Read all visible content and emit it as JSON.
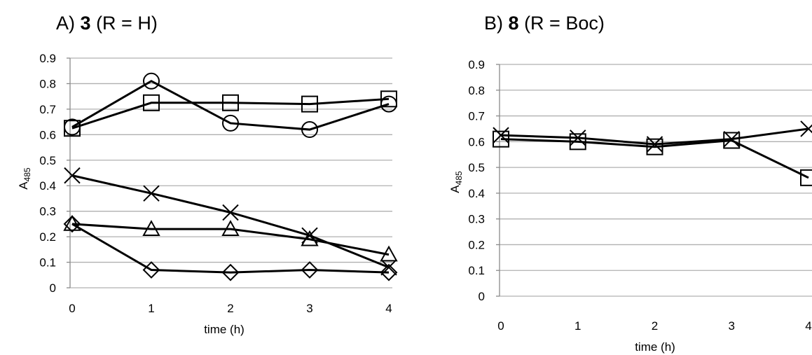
{
  "chart_data": [
    {
      "type": "line",
      "title_prefix": "A)",
      "title_compound": "3",
      "title_suffix": "(R = H)",
      "xlabel": "time (h)",
      "ylabel_main": "A",
      "ylabel_sub": "485",
      "x": [
        0,
        1,
        2,
        3,
        4
      ],
      "xlim": [
        0,
        4
      ],
      "ylim": [
        0,
        0.9
      ],
      "yticks": [
        "0",
        "0.1",
        "0.2",
        "0.3",
        "0.4",
        "0.5",
        "0.6",
        "0.7",
        "0.8",
        "0.9"
      ],
      "xticks": [
        "0",
        "1",
        "2",
        "3",
        "4"
      ],
      "grid": true,
      "series": [
        {
          "marker": "circle",
          "values": [
            0.63,
            0.81,
            0.645,
            0.62,
            0.72
          ]
        },
        {
          "marker": "square",
          "values": [
            0.625,
            0.725,
            0.725,
            0.72,
            0.74
          ]
        },
        {
          "marker": "cross",
          "values": [
            0.44,
            0.37,
            0.295,
            0.205,
            0.08
          ]
        },
        {
          "marker": "triangle",
          "values": [
            0.25,
            0.23,
            0.23,
            0.19,
            0.13
          ]
        },
        {
          "marker": "diamond",
          "values": [
            0.25,
            0.07,
            0.06,
            0.07,
            0.06
          ]
        }
      ]
    },
    {
      "type": "line",
      "title_prefix": "B)",
      "title_compound": "8",
      "title_suffix": "(R = Boc)",
      "xlabel": "time (h)",
      "ylabel_main": "A",
      "ylabel_sub": "485",
      "x": [
        0,
        1,
        2,
        3,
        4
      ],
      "xlim": [
        0,
        4
      ],
      "ylim": [
        0,
        0.9
      ],
      "yticks": [
        "0",
        "0.1",
        "0.2",
        "0.3",
        "0.4",
        "0.5",
        "0.6",
        "0.7",
        "0.8",
        "0.9"
      ],
      "xticks": [
        "0",
        "1",
        "2",
        "3",
        "4"
      ],
      "grid": true,
      "series": [
        {
          "marker": "cross",
          "values": [
            0.625,
            0.615,
            0.59,
            0.61,
            0.65
          ]
        },
        {
          "marker": "square",
          "values": [
            0.61,
            0.6,
            0.58,
            0.605,
            0.46
          ]
        }
      ]
    }
  ]
}
